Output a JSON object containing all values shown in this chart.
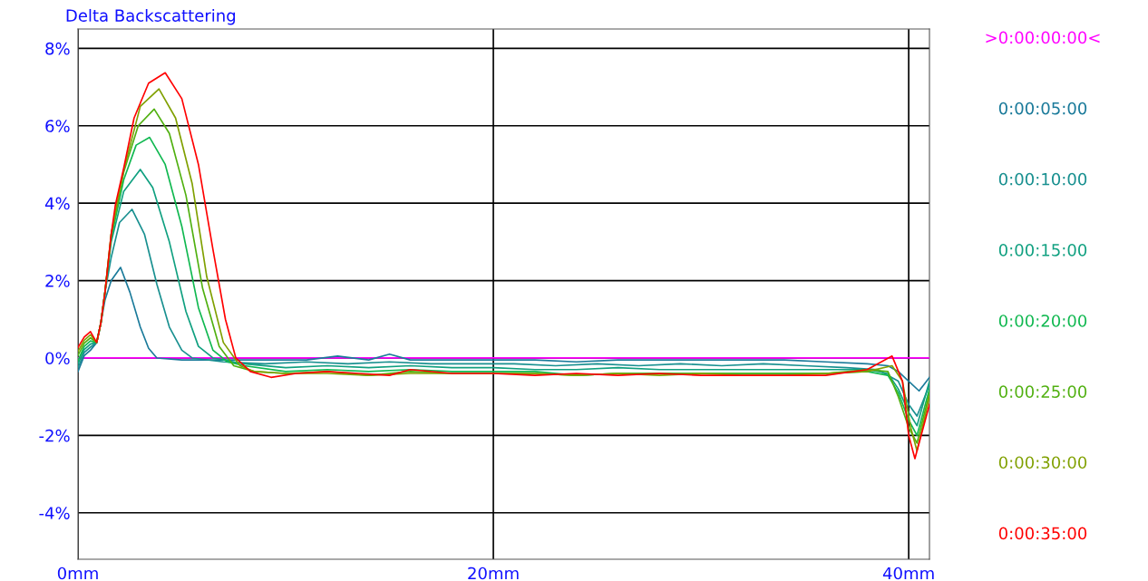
{
  "chart_data": {
    "type": "line",
    "title": "Delta Backscattering",
    "xlim": [
      0,
      41
    ],
    "ylim": [
      -5.2,
      8.5
    ],
    "xticks": [
      {
        "value": 0,
        "label": "0mm"
      },
      {
        "value": 20,
        "label": "20mm"
      },
      {
        "value": 40,
        "label": "40mm"
      }
    ],
    "yticks": [
      {
        "value": -4,
        "label": "-4%"
      },
      {
        "value": -2,
        "label": "-2%"
      },
      {
        "value": 0,
        "label": "0%"
      },
      {
        "value": 2,
        "label": "2%"
      },
      {
        "value": 4,
        "label": "4%"
      },
      {
        "value": 6,
        "label": "6%"
      },
      {
        "value": 8,
        "label": "8%"
      }
    ],
    "grid": true,
    "legend": "right",
    "marker": "none",
    "line_style": "solid",
    "series": [
      {
        "name": ">0:00:00:00<",
        "color": "#ff00ff",
        "x": [
          0,
          41
        ],
        "values": [
          0,
          0
        ]
      },
      {
        "name": "0:00:05:00",
        "color": "#1a7a9a",
        "x": [
          0,
          0.3,
          0.6,
          0.9,
          1.1,
          1.3,
          1.6,
          2.05,
          2.5,
          3.0,
          3.4,
          3.8,
          5,
          7,
          9,
          11,
          12.5,
          14,
          15,
          16,
          18,
          20,
          22,
          24,
          26,
          28,
          30,
          32,
          34,
          36,
          38,
          39,
          39.5,
          40,
          40.5,
          41
        ],
        "values": [
          -0.35,
          0.06,
          0.2,
          0.4,
          0.9,
          1.5,
          2.0,
          2.34,
          1.7,
          0.8,
          0.25,
          0.0,
          -0.05,
          -0.05,
          -0.05,
          -0.05,
          0.05,
          -0.05,
          0.1,
          -0.05,
          -0.05,
          -0.05,
          -0.05,
          -0.1,
          -0.05,
          -0.05,
          -0.05,
          -0.05,
          -0.05,
          -0.1,
          -0.15,
          -0.2,
          -0.35,
          -0.6,
          -0.85,
          -0.5
        ]
      },
      {
        "name": "0:00:10:00",
        "color": "#199090",
        "x": [
          0,
          0.3,
          0.6,
          0.9,
          1.1,
          1.3,
          1.6,
          2.0,
          2.6,
          3.2,
          3.8,
          4.4,
          5.0,
          5.5,
          7,
          9,
          11,
          13,
          15,
          17,
          19,
          21,
          23,
          25,
          27,
          29,
          31,
          33,
          35,
          37,
          38.5,
          39.5,
          40,
          40.4,
          41
        ],
        "values": [
          -0.25,
          0.14,
          0.28,
          0.4,
          0.9,
          1.7,
          2.6,
          3.5,
          3.84,
          3.2,
          1.9,
          0.8,
          0.2,
          0.0,
          -0.1,
          -0.15,
          -0.1,
          -0.15,
          -0.1,
          -0.15,
          -0.15,
          -0.15,
          -0.2,
          -0.15,
          -0.2,
          -0.15,
          -0.2,
          -0.15,
          -0.2,
          -0.25,
          -0.3,
          -0.6,
          -1.2,
          -1.5,
          -0.7
        ]
      },
      {
        "name": "0:00:15:00",
        "color": "#10a080",
        "x": [
          0,
          0.3,
          0.6,
          0.9,
          1.1,
          1.3,
          1.6,
          2.2,
          3.0,
          3.6,
          4.4,
          5.2,
          5.8,
          6.5,
          8,
          10,
          12,
          14,
          16,
          18,
          20,
          22,
          24,
          26,
          28,
          30,
          32,
          34,
          36,
          38,
          39,
          39.5,
          40,
          40.4,
          41
        ],
        "values": [
          -0.15,
          0.22,
          0.36,
          0.4,
          0.9,
          1.7,
          3.0,
          4.3,
          4.87,
          4.4,
          3.0,
          1.2,
          0.3,
          0.0,
          -0.15,
          -0.25,
          -0.2,
          -0.25,
          -0.2,
          -0.25,
          -0.25,
          -0.3,
          -0.3,
          -0.25,
          -0.3,
          -0.3,
          -0.3,
          -0.3,
          -0.3,
          -0.3,
          -0.4,
          -0.8,
          -1.4,
          -1.75,
          -0.6
        ]
      },
      {
        "name": "0:00:20:00",
        "color": "#10b850",
        "x": [
          0,
          0.3,
          0.6,
          0.9,
          1.1,
          1.3,
          1.6,
          2.2,
          2.8,
          3.45,
          4.2,
          5.0,
          5.8,
          6.5,
          7.2,
          8,
          10,
          12,
          14,
          16,
          18,
          20,
          22,
          24,
          26,
          28,
          30,
          32,
          34,
          36,
          38,
          39,
          39.5,
          40,
          40.4,
          41
        ],
        "values": [
          -0.07,
          0.3,
          0.44,
          0.4,
          0.9,
          1.7,
          3.1,
          4.6,
          5.5,
          5.7,
          5.0,
          3.4,
          1.3,
          0.2,
          -0.1,
          -0.2,
          -0.35,
          -0.3,
          -0.35,
          -0.3,
          -0.35,
          -0.35,
          -0.35,
          -0.45,
          -0.4,
          -0.4,
          -0.4,
          -0.4,
          -0.4,
          -0.4,
          -0.35,
          -0.45,
          -0.9,
          -1.6,
          -2.0,
          -0.8
        ]
      },
      {
        "name": "0:00:25:00",
        "color": "#50b010",
        "x": [
          0,
          0.3,
          0.6,
          0.9,
          1.1,
          1.3,
          1.6,
          2.2,
          2.9,
          3.67,
          4.4,
          5.2,
          6.0,
          6.8,
          7.5,
          8.5,
          10,
          12,
          14,
          16,
          18,
          20,
          22,
          24,
          26,
          28,
          30,
          32,
          34,
          36,
          38,
          39,
          39.5,
          40,
          40.4,
          41
        ],
        "values": [
          0.07,
          0.38,
          0.52,
          0.4,
          0.9,
          1.7,
          3.2,
          4.8,
          6.0,
          6.43,
          5.8,
          4.2,
          1.8,
          0.3,
          -0.2,
          -0.35,
          -0.4,
          -0.35,
          -0.45,
          -0.35,
          -0.4,
          -0.4,
          -0.4,
          -0.45,
          -0.4,
          -0.4,
          -0.4,
          -0.4,
          -0.4,
          -0.4,
          -0.3,
          -0.35,
          -1.0,
          -1.8,
          -2.2,
          -0.9
        ]
      },
      {
        "name": "0:00:30:00",
        "color": "#80a000",
        "x": [
          0,
          0.3,
          0.6,
          0.9,
          1.1,
          1.3,
          1.6,
          2.2,
          3.0,
          3.9,
          4.7,
          5.5,
          6.2,
          7.0,
          7.8,
          8.5,
          10,
          12,
          14,
          16,
          18,
          20,
          22,
          24,
          26,
          28,
          30,
          32,
          34,
          36,
          38,
          39.2,
          39.7,
          40.1,
          40.4,
          41
        ],
        "values": [
          0.17,
          0.46,
          0.6,
          0.4,
          0.9,
          1.7,
          3.2,
          4.85,
          6.5,
          6.95,
          6.2,
          4.5,
          2.1,
          0.4,
          -0.2,
          -0.35,
          -0.4,
          -0.4,
          -0.45,
          -0.4,
          -0.4,
          -0.4,
          -0.4,
          -0.45,
          -0.4,
          -0.45,
          -0.4,
          -0.45,
          -0.45,
          -0.4,
          -0.35,
          -0.2,
          -0.6,
          -1.8,
          -2.4,
          -1.0
        ]
      },
      {
        "name": "0:00:35:00",
        "color": "#ff0000",
        "x": [
          0,
          0.3,
          0.6,
          0.9,
          1.1,
          1.3,
          1.6,
          1.8,
          2.2,
          2.7,
          3.4,
          4.2,
          5.0,
          5.8,
          6.5,
          7.1,
          7.6,
          8.3,
          9.3,
          10.5,
          12,
          13.5,
          15,
          16,
          18,
          20,
          22,
          24,
          26,
          28,
          30,
          32,
          34,
          36,
          38,
          39.2,
          39.7,
          40.0,
          40.3,
          41
        ],
        "values": [
          0.27,
          0.54,
          0.68,
          0.4,
          0.9,
          1.7,
          3.2,
          3.95,
          4.9,
          6.2,
          7.1,
          7.37,
          6.7,
          5.0,
          2.8,
          1.0,
          0.0,
          -0.35,
          -0.5,
          -0.4,
          -0.35,
          -0.4,
          -0.45,
          -0.3,
          -0.4,
          -0.4,
          -0.45,
          -0.4,
          -0.45,
          -0.4,
          -0.45,
          -0.45,
          -0.45,
          -0.45,
          -0.3,
          0.05,
          -0.6,
          -2.0,
          -2.6,
          -1.2
        ]
      }
    ]
  }
}
